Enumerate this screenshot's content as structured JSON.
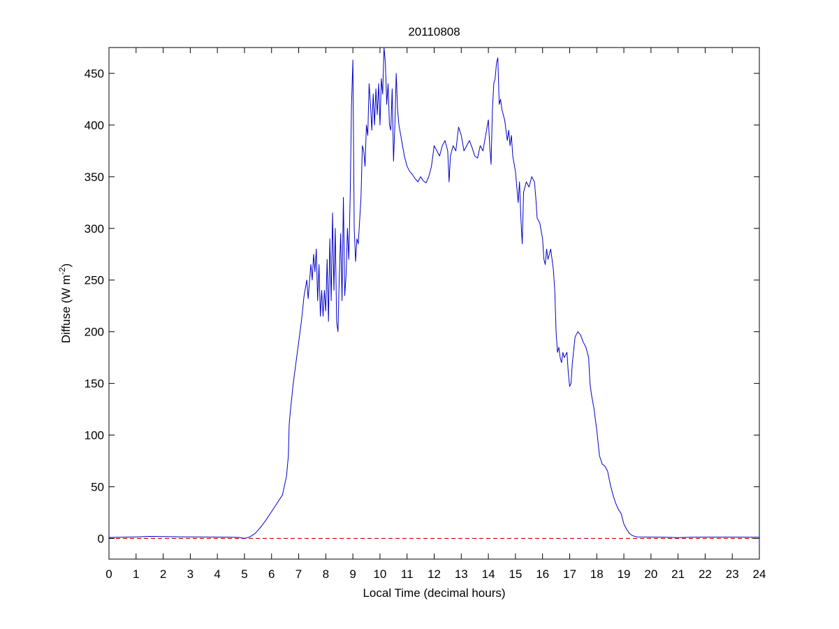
{
  "chart_data": {
    "type": "line",
    "title": "20110808",
    "xlabel": "Local Time (decimal hours)",
    "ylabel": {
      "prefix": "Diffuse (W m",
      "superscript": "-2",
      "suffix": ")"
    },
    "xlim": [
      0,
      24
    ],
    "ylim": [
      -20,
      475
    ],
    "xticks": [
      0,
      1,
      2,
      3,
      4,
      5,
      6,
      7,
      8,
      9,
      10,
      11,
      12,
      13,
      14,
      15,
      16,
      17,
      18,
      19,
      20,
      21,
      22,
      23,
      24
    ],
    "yticks": [
      0,
      50,
      100,
      150,
      200,
      250,
      300,
      350,
      400,
      450
    ],
    "grid": false,
    "legend": "none",
    "colors": {
      "series": "#0000c8",
      "reference": "#d40000",
      "axes": "#000000"
    },
    "reference_line": {
      "y": 0,
      "style": "dashed"
    },
    "series": [
      {
        "points": [
          [
            0,
            1
          ],
          [
            0.5,
            1.2
          ],
          [
            1,
            1.5
          ],
          [
            1.5,
            2
          ],
          [
            2,
            1.8
          ],
          [
            2.5,
            1.6
          ],
          [
            3,
            1.5
          ],
          [
            3.5,
            1.4
          ],
          [
            4,
            1.3
          ],
          [
            4.5,
            1.2
          ],
          [
            4.8,
            1
          ],
          [
            5,
            0
          ],
          [
            5.2,
            1.5
          ],
          [
            5.4,
            5
          ],
          [
            5.6,
            11
          ],
          [
            5.8,
            18
          ],
          [
            6,
            26
          ],
          [
            6.2,
            34
          ],
          [
            6.4,
            42
          ],
          [
            6.55,
            60
          ],
          [
            6.62,
            80
          ],
          [
            6.65,
            110
          ],
          [
            6.7,
            125
          ],
          [
            6.8,
            150
          ],
          [
            6.9,
            170
          ],
          [
            7,
            190
          ],
          [
            7.1,
            210
          ],
          [
            7.2,
            235
          ],
          [
            7.3,
            250
          ],
          [
            7.35,
            232
          ],
          [
            7.45,
            265
          ],
          [
            7.5,
            250
          ],
          [
            7.55,
            275
          ],
          [
            7.6,
            258
          ],
          [
            7.65,
            280
          ],
          [
            7.7,
            230
          ],
          [
            7.75,
            265
          ],
          [
            7.8,
            215
          ],
          [
            7.85,
            240
          ],
          [
            7.9,
            215
          ],
          [
            7.95,
            240
          ],
          [
            8,
            220
          ],
          [
            8.05,
            270
          ],
          [
            8.1,
            210
          ],
          [
            8.15,
            290
          ],
          [
            8.2,
            230
          ],
          [
            8.25,
            315
          ],
          [
            8.3,
            240
          ],
          [
            8.35,
            300
          ],
          [
            8.4,
            210
          ],
          [
            8.45,
            200
          ],
          [
            8.5,
            255
          ],
          [
            8.55,
            295
          ],
          [
            8.6,
            230
          ],
          [
            8.65,
            330
          ],
          [
            8.7,
            235
          ],
          [
            8.75,
            255
          ],
          [
            8.8,
            300
          ],
          [
            8.85,
            270
          ],
          [
            8.9,
            330
          ],
          [
            8.95,
            420
          ],
          [
            9,
            463
          ],
          [
            9.05,
            300
          ],
          [
            9.1,
            268
          ],
          [
            9.15,
            290
          ],
          [
            9.2,
            285
          ],
          [
            9.3,
            330
          ],
          [
            9.35,
            380
          ],
          [
            9.4,
            375
          ],
          [
            9.45,
            360
          ],
          [
            9.5,
            400
          ],
          [
            9.55,
            390
          ],
          [
            9.6,
            440
          ],
          [
            9.65,
            420
          ],
          [
            9.7,
            395
          ],
          [
            9.75,
            430
          ],
          [
            9.8,
            400
          ],
          [
            9.85,
            435
          ],
          [
            9.9,
            410
          ],
          [
            9.95,
            440
          ],
          [
            10,
            400
          ],
          [
            10.05,
            445
          ],
          [
            10.1,
            430
          ],
          [
            10.15,
            475
          ],
          [
            10.2,
            460
          ],
          [
            10.25,
            420
          ],
          [
            10.3,
            440
          ],
          [
            10.35,
            400
          ],
          [
            10.4,
            395
          ],
          [
            10.45,
            435
          ],
          [
            10.5,
            365
          ],
          [
            10.55,
            400
          ],
          [
            10.6,
            450
          ],
          [
            10.65,
            415
          ],
          [
            10.7,
            400
          ],
          [
            10.8,
            385
          ],
          [
            10.9,
            370
          ],
          [
            11,
            360
          ],
          [
            11.1,
            355
          ],
          [
            11.2,
            352
          ],
          [
            11.3,
            348
          ],
          [
            11.4,
            345
          ],
          [
            11.5,
            350
          ],
          [
            11.6,
            346
          ],
          [
            11.7,
            344
          ],
          [
            11.8,
            350
          ],
          [
            11.9,
            360
          ],
          [
            12,
            380
          ],
          [
            12.1,
            375
          ],
          [
            12.2,
            370
          ],
          [
            12.3,
            380
          ],
          [
            12.4,
            385
          ],
          [
            12.5,
            375
          ],
          [
            12.55,
            345
          ],
          [
            12.6,
            370
          ],
          [
            12.7,
            380
          ],
          [
            12.8,
            375
          ],
          [
            12.9,
            398
          ],
          [
            13,
            390
          ],
          [
            13.1,
            375
          ],
          [
            13.2,
            380
          ],
          [
            13.3,
            385
          ],
          [
            13.4,
            378
          ],
          [
            13.5,
            370
          ],
          [
            13.6,
            368
          ],
          [
            13.7,
            380
          ],
          [
            13.8,
            375
          ],
          [
            13.9,
            390
          ],
          [
            14,
            405
          ],
          [
            14.05,
            380
          ],
          [
            14.1,
            362
          ],
          [
            14.15,
            415
          ],
          [
            14.2,
            440
          ],
          [
            14.25,
            445
          ],
          [
            14.3,
            460
          ],
          [
            14.35,
            465
          ],
          [
            14.4,
            420
          ],
          [
            14.45,
            425
          ],
          [
            14.5,
            415
          ],
          [
            14.6,
            405
          ],
          [
            14.7,
            385
          ],
          [
            14.75,
            395
          ],
          [
            14.8,
            380
          ],
          [
            14.85,
            390
          ],
          [
            14.9,
            370
          ],
          [
            15,
            355
          ],
          [
            15.05,
            340
          ],
          [
            15.1,
            325
          ],
          [
            15.15,
            345
          ],
          [
            15.2,
            310
          ],
          [
            15.25,
            285
          ],
          [
            15.3,
            335
          ],
          [
            15.4,
            345
          ],
          [
            15.5,
            340
          ],
          [
            15.6,
            350
          ],
          [
            15.7,
            345
          ],
          [
            15.75,
            330
          ],
          [
            15.8,
            310
          ],
          [
            15.9,
            305
          ],
          [
            16,
            290
          ],
          [
            16.05,
            270
          ],
          [
            16.1,
            265
          ],
          [
            16.15,
            280
          ],
          [
            16.2,
            270
          ],
          [
            16.3,
            280
          ],
          [
            16.4,
            260
          ],
          [
            16.45,
            240
          ],
          [
            16.5,
            200
          ],
          [
            16.55,
            180
          ],
          [
            16.6,
            185
          ],
          [
            16.65,
            175
          ],
          [
            16.7,
            170
          ],
          [
            16.75,
            180
          ],
          [
            16.8,
            175
          ],
          [
            16.9,
            180
          ],
          [
            16.95,
            160
          ],
          [
            17,
            147
          ],
          [
            17.05,
            150
          ],
          [
            17.1,
            170
          ],
          [
            17.2,
            195
          ],
          [
            17.3,
            200
          ],
          [
            17.4,
            197
          ],
          [
            17.5,
            190
          ],
          [
            17.6,
            185
          ],
          [
            17.7,
            175
          ],
          [
            17.75,
            150
          ],
          [
            17.8,
            140
          ],
          [
            17.9,
            125
          ],
          [
            18,
            105
          ],
          [
            18.1,
            80
          ],
          [
            18.2,
            72
          ],
          [
            18.3,
            70
          ],
          [
            18.4,
            65
          ],
          [
            18.5,
            52
          ],
          [
            18.6,
            42
          ],
          [
            18.7,
            34
          ],
          [
            18.8,
            28
          ],
          [
            18.9,
            24
          ],
          [
            19,
            14
          ],
          [
            19.1,
            9
          ],
          [
            19.2,
            5
          ],
          [
            19.3,
            3
          ],
          [
            19.4,
            2
          ],
          [
            19.5,
            1.5
          ],
          [
            19.8,
            1.4
          ],
          [
            20,
            1.3
          ],
          [
            20.5,
            1.2
          ],
          [
            21,
            0.8
          ],
          [
            21.5,
            1.2
          ],
          [
            22,
            1.3
          ],
          [
            22.5,
            1.3
          ],
          [
            23,
            1.3
          ],
          [
            23.5,
            1.2
          ],
          [
            24,
            1.2
          ]
        ]
      }
    ]
  }
}
